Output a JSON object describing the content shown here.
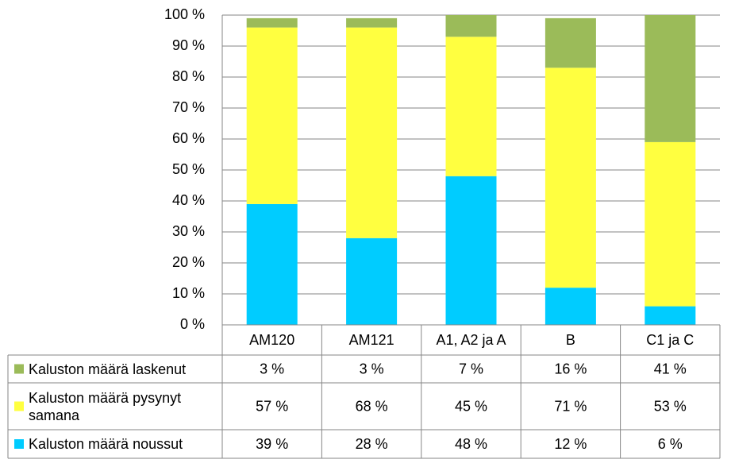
{
  "chart_data": {
    "type": "stacked_bar",
    "categories": [
      "AM120",
      "AM121",
      "A1, A2 ja A",
      "B",
      "C1 ja C"
    ],
    "series": [
      {
        "name": "Kaluston määrä noussut",
        "color": "#00ccff",
        "values": [
          39,
          28,
          48,
          12,
          6
        ],
        "value_labels": [
          "39 %",
          "28 %",
          "48 %",
          "12 %",
          "6 %"
        ]
      },
      {
        "name": "Kaluston määrä pysynyt samana",
        "color": "#ffff40",
        "values": [
          57,
          68,
          45,
          71,
          53
        ],
        "value_labels": [
          "57 %",
          "68 %",
          "45 %",
          "71 %",
          "53 %"
        ]
      },
      {
        "name": "Kaluston määrä laskenut",
        "color": "#9bbb59",
        "values": [
          3,
          3,
          7,
          16,
          41
        ],
        "value_labels": [
          "3 %",
          "3 %",
          "7 %",
          "16 %",
          "41 %"
        ]
      }
    ],
    "ylim": [
      0,
      100
    ],
    "yticks": [
      {
        "value": 0,
        "label": "0 %"
      },
      {
        "value": 10,
        "label": "10 %"
      },
      {
        "value": 20,
        "label": "20 %"
      },
      {
        "value": 30,
        "label": "30 %"
      },
      {
        "value": 40,
        "label": "40 %"
      },
      {
        "value": 50,
        "label": "50 %"
      },
      {
        "value": 60,
        "label": "60 %"
      },
      {
        "value": 70,
        "label": "70 %"
      },
      {
        "value": 80,
        "label": "80 %"
      },
      {
        "value": 90,
        "label": "90 %"
      },
      {
        "value": 100,
        "label": "100 %"
      }
    ],
    "grid": true
  }
}
